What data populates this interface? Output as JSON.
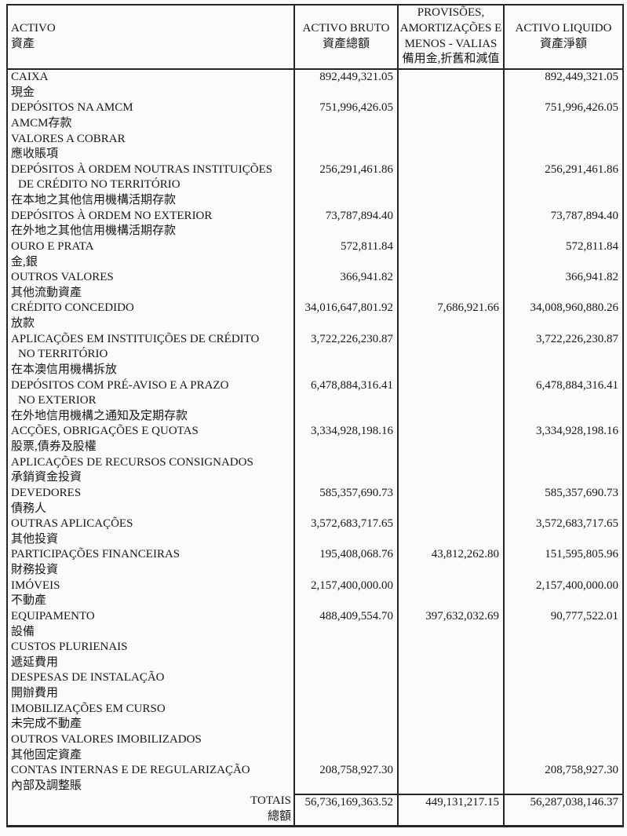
{
  "table": {
    "header": {
      "activo": {
        "pt": "ACTIVO",
        "cn": "資產"
      },
      "bruto": {
        "pt": "ACTIVO BRUTO",
        "cn": "資產總額"
      },
      "provisoes": {
        "pt_line1": "PROVISÕES,",
        "pt_line2": "AMORTIZAÇÕES E",
        "pt_line3": "MENOS - VALIAS",
        "cn": "備用金,折舊和減值"
      },
      "liquido": {
        "pt": "ACTIVO LIQUIDO",
        "cn": "資產淨額"
      }
    },
    "rows": [
      {
        "pt": [
          "CAIXA"
        ],
        "cn": "現金",
        "bruto": "892,449,321.05",
        "prov": "",
        "liq": "892,449,321.05"
      },
      {
        "pt": [
          "DEPÓSITOS NA AMCM"
        ],
        "cn": "AMCM存款",
        "bruto": "751,996,426.05",
        "prov": "",
        "liq": "751,996,426.05"
      },
      {
        "pt": [
          "VALORES A COBRAR"
        ],
        "cn": "應收賬項",
        "bruto": "",
        "prov": "",
        "liq": ""
      },
      {
        "pt": [
          "DEPÓSITOS À ORDEM NOUTRAS INSTITUIÇÕES",
          "DE CRÉDITO NO TERRITÓRIO"
        ],
        "cn": "在本地之其他信用機構活期存款",
        "bruto": "256,291,461.86",
        "prov": "",
        "liq": "256,291,461.86"
      },
      {
        "pt": [
          "DEPÓSITOS À ORDEM NO EXTERIOR"
        ],
        "cn": "在外地之其他信用機構活期存款",
        "bruto": "73,787,894.40",
        "prov": "",
        "liq": "73,787,894.40"
      },
      {
        "pt": [
          "OURO E PRATA"
        ],
        "cn": "金,銀",
        "bruto": "572,811.84",
        "prov": "",
        "liq": "572,811.84"
      },
      {
        "pt": [
          "OUTROS VALORES"
        ],
        "cn": "其他流動資產",
        "bruto": "366,941.82",
        "prov": "",
        "liq": "366,941.82"
      },
      {
        "pt": [
          "CRÉDITO CONCEDIDO"
        ],
        "cn": "放款",
        "bruto": "34,016,647,801.92",
        "prov": "7,686,921.66",
        "liq": "34,008,960,880.26"
      },
      {
        "pt": [
          "APLICAÇÕES EM INSTITUIÇÕES DE CRÉDITO",
          "NO TERRITÓRIO"
        ],
        "cn": "在本澳信用機構拆放",
        "bruto": "3,722,226,230.87",
        "prov": "",
        "liq": "3,722,226,230.87"
      },
      {
        "pt": [
          "DEPÓSITOS COM PRÉ-AVISO E A PRAZO",
          "NO EXTERIOR"
        ],
        "cn": "在外地信用機構之通知及定期存款",
        "bruto": "6,478,884,316.41",
        "prov": "",
        "liq": "6,478,884,316.41"
      },
      {
        "pt": [
          "ACÇÕES, OBRIGAÇÕES E QUOTAS"
        ],
        "cn": "股票,債券及股權",
        "bruto": "3,334,928,198.16",
        "prov": "",
        "liq": "3,334,928,198.16"
      },
      {
        "pt": [
          "APLICAÇÕES DE RECURSOS CONSIGNADOS"
        ],
        "cn": "承銷資金投資",
        "bruto": "",
        "prov": "",
        "liq": ""
      },
      {
        "pt": [
          "DEVEDORES"
        ],
        "cn": "債務人",
        "bruto": "585,357,690.73",
        "prov": "",
        "liq": "585,357,690.73"
      },
      {
        "pt": [
          "OUTRAS APLICAÇÕES"
        ],
        "cn": "其他投資",
        "bruto": "3,572,683,717.65",
        "prov": "",
        "liq": "3,572,683,717.65"
      },
      {
        "pt": [
          "PARTICIPAÇÕES FINANCEIRAS"
        ],
        "cn": "財務投資",
        "bruto": "195,408,068.76",
        "prov": "43,812,262.80",
        "liq": "151,595,805.96"
      },
      {
        "pt": [
          "IMÓVEIS"
        ],
        "cn": "不動產",
        "bruto": "2,157,400,000.00",
        "prov": "",
        "liq": "2,157,400,000.00"
      },
      {
        "pt": [
          "EQUIPAMENTO"
        ],
        "cn": "設備",
        "bruto": "488,409,554.70",
        "prov": "397,632,032.69",
        "liq": "90,777,522.01"
      },
      {
        "pt": [
          "CUSTOS PLURIENAIS"
        ],
        "cn": "遞延費用",
        "bruto": "",
        "prov": "",
        "liq": ""
      },
      {
        "pt": [
          "DESPESAS DE INSTALAÇÃO"
        ],
        "cn": "開辦費用",
        "bruto": "",
        "prov": "",
        "liq": ""
      },
      {
        "pt": [
          "IMOBILIZAÇÕES EM CURSO"
        ],
        "cn": "未完成不動產",
        "bruto": "",
        "prov": "",
        "liq": ""
      },
      {
        "pt": [
          "OUTROS VALORES IMOBILIZADOS"
        ],
        "cn": "其他固定資產",
        "bruto": "",
        "prov": "",
        "liq": ""
      },
      {
        "pt": [
          "CONTAS INTERNAS E DE REGULARIZAÇÃO"
        ],
        "cn": "內部及調整賬",
        "bruto": "208,758,927.30",
        "prov": "",
        "liq": "208,758,927.30"
      }
    ],
    "totals": {
      "pt": "TOTAIS",
      "cn": "總額",
      "bruto": "56,736,169,363.52",
      "prov": "449,131,217.15",
      "liq": "56,287,038,146.37"
    }
  }
}
